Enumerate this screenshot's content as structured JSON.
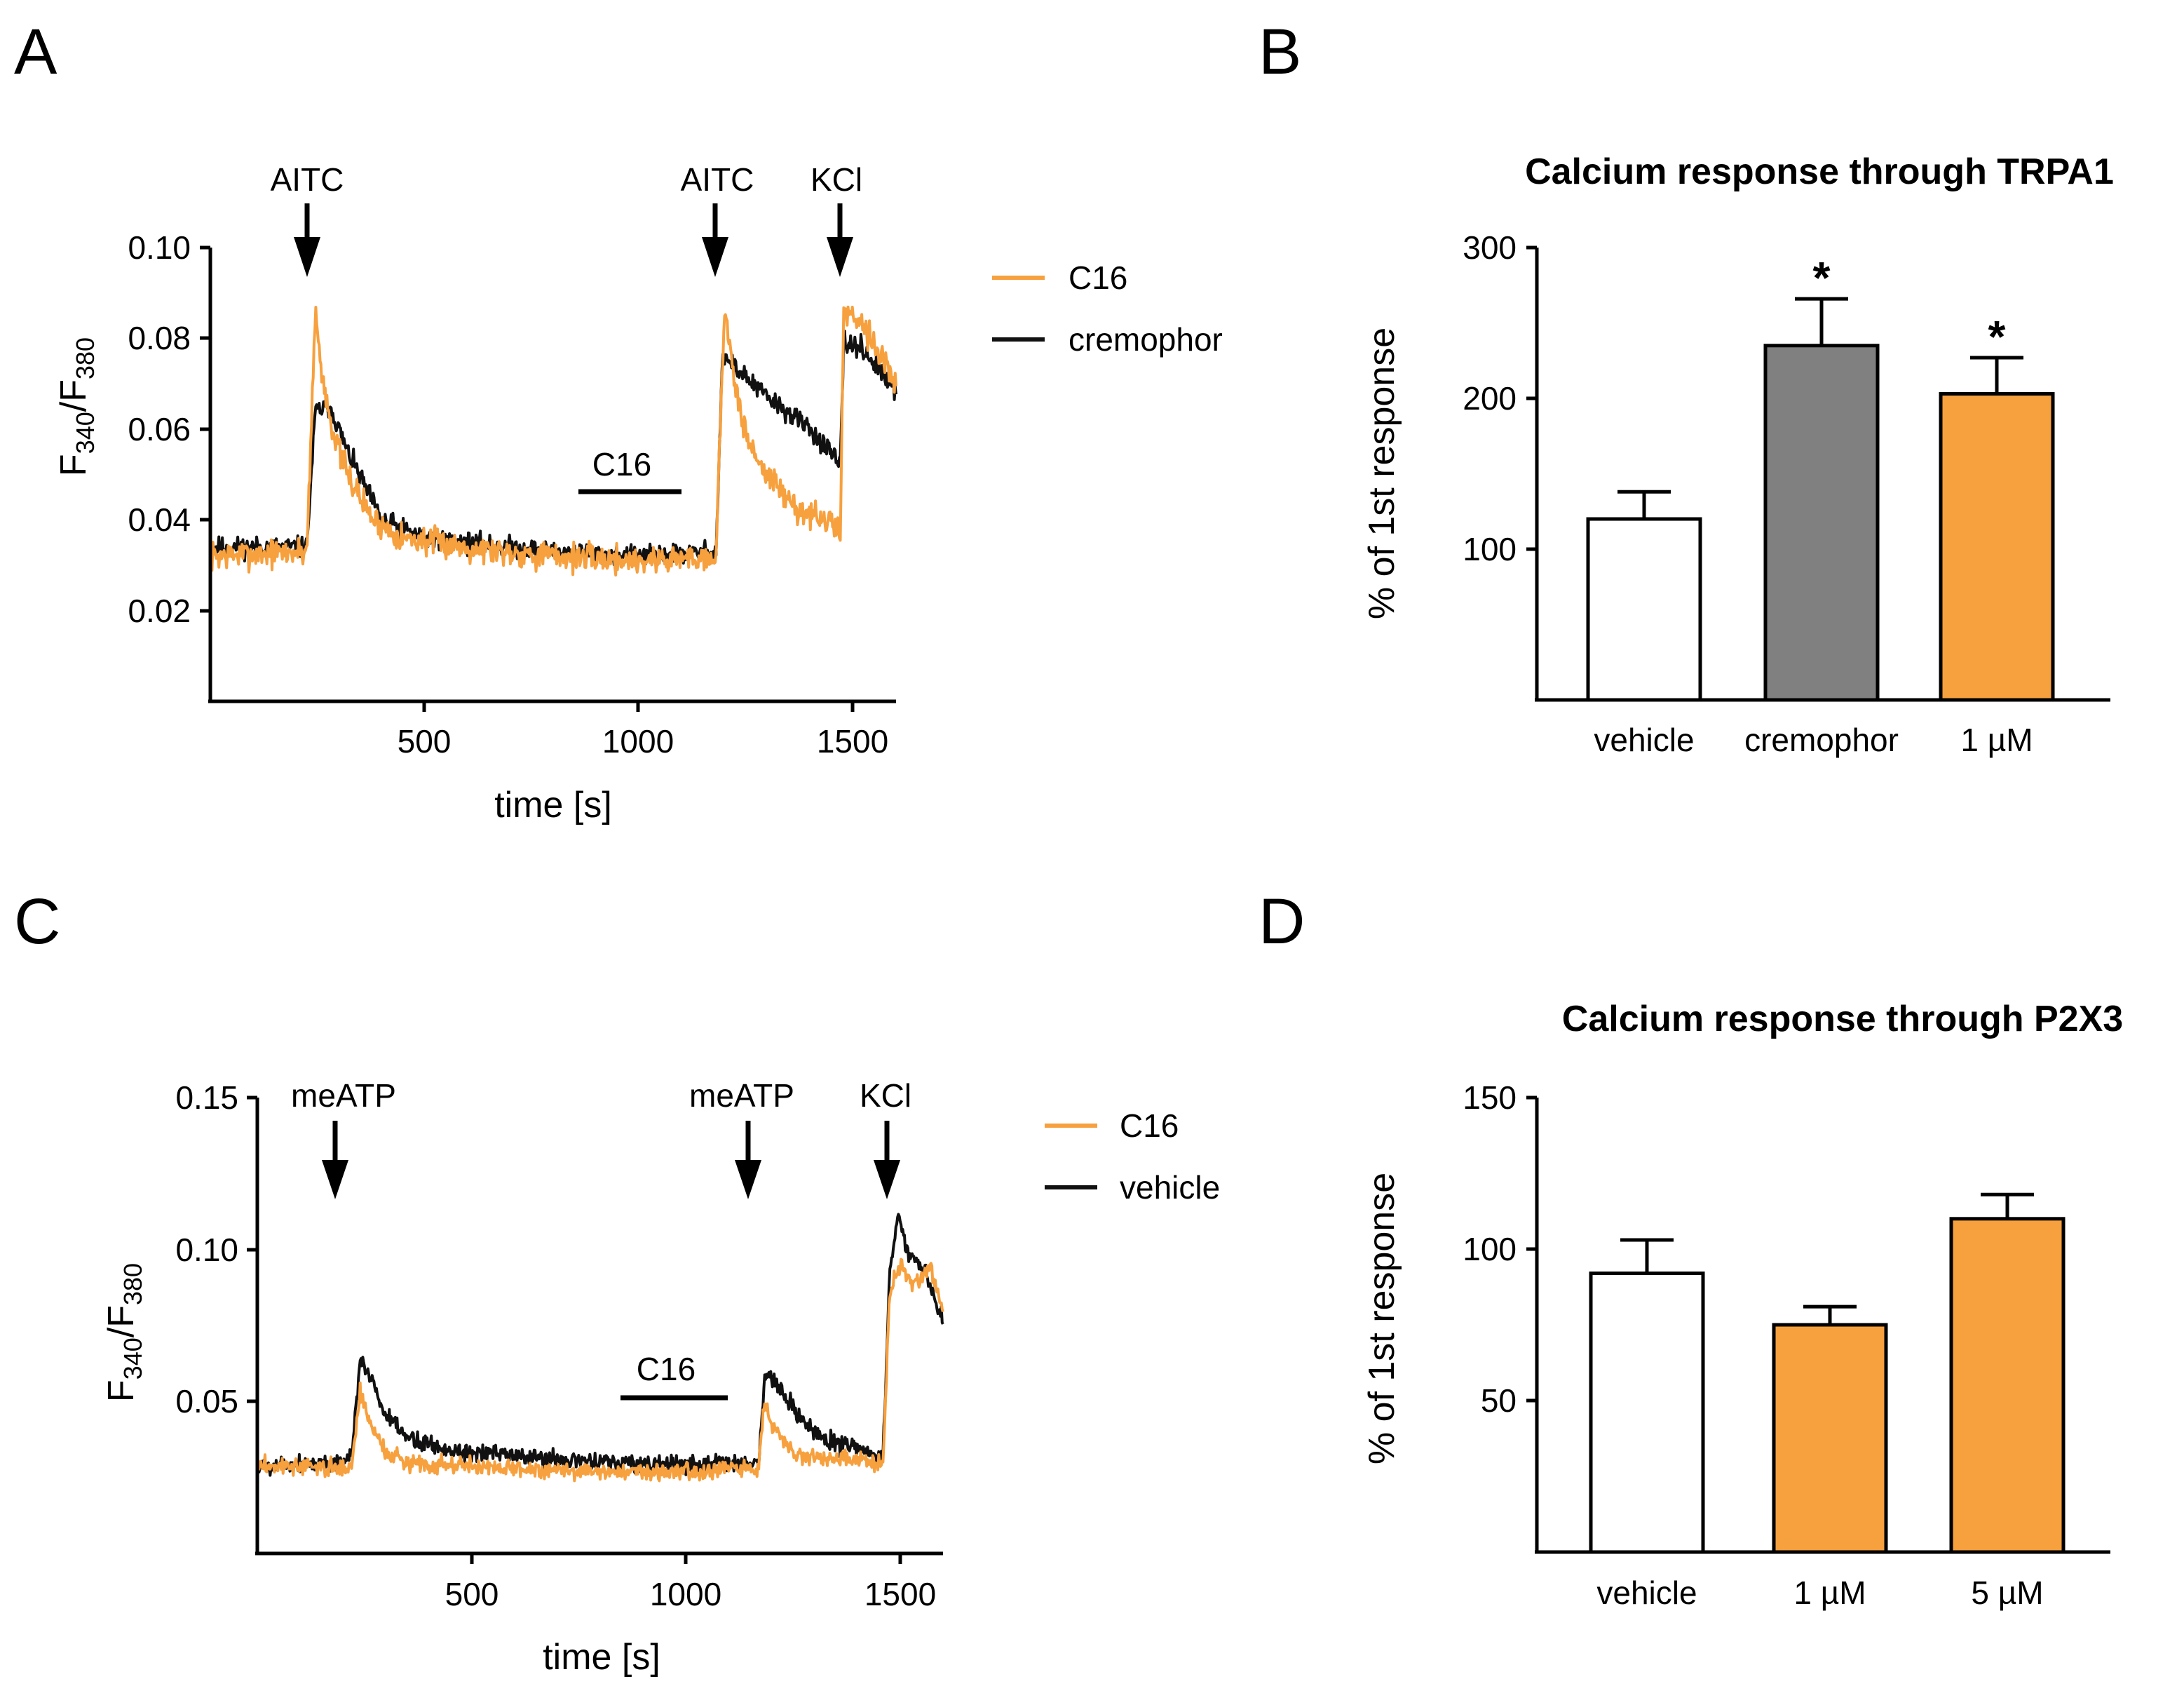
{
  "colors": {
    "orange": "#f7a03e",
    "grey": "#808080",
    "black": "#111111",
    "white": "#ffffff"
  },
  "chart_data": [
    {
      "panel": "A",
      "type": "line",
      "title": "",
      "xlabel": "time [s]",
      "ylabel": {
        "main1": "F",
        "sub1": "340",
        "slash": "/F",
        "sub2": "380"
      },
      "xlim": [
        0,
        1600
      ],
      "ylim": [
        0,
        0.1
      ],
      "xticks": [
        500,
        1000,
        1500
      ],
      "xtick_labels": [
        "500",
        "1000",
        "1500"
      ],
      "yticks": [
        0.02,
        0.04,
        0.06,
        0.08,
        0.1
      ],
      "ytick_labels": [
        "0.02",
        "0.04",
        "0.06",
        "0.08",
        "0.10"
      ],
      "legend": [
        {
          "name": "C16",
          "color": "#f7a03e"
        },
        {
          "name": "cremophor",
          "color": "#111111"
        }
      ],
      "annotations": [
        {
          "label": "AITC",
          "x": 225
        },
        {
          "label": "AITC",
          "x": 1180
        },
        {
          "label": "KCl",
          "x": 1470
        }
      ],
      "bar_annotation": {
        "label": "C16",
        "x_start": 860,
        "x_end": 1100,
        "y": 0.044
      },
      "series": [
        {
          "name": "cremophor",
          "color": "#111111",
          "noise": 0.0016,
          "seed": 11,
          "keypoints": [
            [
              0,
              0.034
            ],
            [
              225,
              0.034
            ],
            [
              245,
              0.064
            ],
            [
              280,
              0.065
            ],
            [
              320,
              0.055
            ],
            [
              400,
              0.04
            ],
            [
              500,
              0.036
            ],
            [
              600,
              0.035
            ],
            [
              800,
              0.033
            ],
            [
              1000,
              0.032
            ],
            [
              1180,
              0.033
            ],
            [
              1195,
              0.076
            ],
            [
              1220,
              0.074
            ],
            [
              1300,
              0.067
            ],
            [
              1400,
              0.06
            ],
            [
              1470,
              0.052
            ],
            [
              1478,
              0.079
            ],
            [
              1520,
              0.078
            ],
            [
              1600,
              0.068
            ]
          ]
        },
        {
          "name": "C16",
          "color": "#f7a03e",
          "noise": 0.0022,
          "seed": 7,
          "keypoints": [
            [
              0,
              0.032
            ],
            [
              225,
              0.033
            ],
            [
              245,
              0.086
            ],
            [
              260,
              0.072
            ],
            [
              290,
              0.058
            ],
            [
              320,
              0.05
            ],
            [
              380,
              0.04
            ],
            [
              450,
              0.036
            ],
            [
              600,
              0.034
            ],
            [
              800,
              0.032
            ],
            [
              1000,
              0.031
            ],
            [
              1180,
              0.032
            ],
            [
              1200,
              0.088
            ],
            [
              1225,
              0.068
            ],
            [
              1260,
              0.056
            ],
            [
              1300,
              0.05
            ],
            [
              1360,
              0.043
            ],
            [
              1470,
              0.038
            ],
            [
              1478,
              0.086
            ],
            [
              1520,
              0.084
            ],
            [
              1600,
              0.07
            ]
          ]
        }
      ]
    },
    {
      "panel": "B",
      "type": "bar",
      "title": "Calcium response through TRPA1",
      "xlabel": "",
      "ylabel": "% of 1st response",
      "ylim": [
        0,
        300
      ],
      "yticks": [
        100,
        200,
        300
      ],
      "ytick_labels": [
        "100",
        "200",
        "300"
      ],
      "categories": [
        "vehicle",
        "cremophor",
        "1 µM"
      ],
      "values": [
        120,
        235,
        203
      ],
      "errors": [
        18,
        31,
        24
      ],
      "fills": [
        "#ffffff",
        "#808080",
        "#f7a03e"
      ],
      "significance": [
        "",
        "*",
        "*"
      ]
    },
    {
      "panel": "C",
      "type": "line",
      "title": "",
      "xlabel": "time [s]",
      "ylabel": {
        "main1": "F",
        "sub1": "340",
        "slash": "/F",
        "sub2": "380"
      },
      "xlim": [
        0,
        1600
      ],
      "ylim": [
        0,
        0.15
      ],
      "xticks": [
        500,
        1000,
        1500
      ],
      "xtick_labels": [
        "500",
        "1000",
        "1500"
      ],
      "yticks": [
        0.05,
        0.1,
        0.15
      ],
      "ytick_labels": [
        "0.05",
        "0.10",
        "0.15"
      ],
      "legend": [
        {
          "name": "C16",
          "color": "#f7a03e"
        },
        {
          "name": "vehicle",
          "color": "#111111"
        }
      ],
      "annotations": [
        {
          "label": "meATP",
          "x": 180
        },
        {
          "label": "meATP",
          "x": 1145
        },
        {
          "label": "KCl",
          "x": 1470
        }
      ],
      "bar_annotation": {
        "label": "C16",
        "x_start": 860,
        "x_end": 1100,
        "y": 0.047
      },
      "series": [
        {
          "name": "vehicle",
          "color": "#111111",
          "noise": 0.0022,
          "seed": 5,
          "keypoints": [
            [
              0,
              0.029
            ],
            [
              200,
              0.03
            ],
            [
              220,
              0.031
            ],
            [
              240,
              0.064
            ],
            [
              265,
              0.058
            ],
            [
              300,
              0.045
            ],
            [
              350,
              0.038
            ],
            [
              450,
              0.034
            ],
            [
              600,
              0.032
            ],
            [
              800,
              0.03
            ],
            [
              1000,
              0.029
            ],
            [
              1170,
              0.03
            ],
            [
              1185,
              0.06
            ],
            [
              1210,
              0.056
            ],
            [
              1260,
              0.045
            ],
            [
              1330,
              0.037
            ],
            [
              1400,
              0.035
            ],
            [
              1460,
              0.032
            ],
            [
              1475,
              0.09
            ],
            [
              1495,
              0.112
            ],
            [
              1520,
              0.098
            ],
            [
              1560,
              0.092
            ],
            [
              1600,
              0.076
            ]
          ]
        },
        {
          "name": "C16",
          "color": "#f7a03e",
          "noise": 0.002,
          "seed": 3,
          "keypoints": [
            [
              0,
              0.029
            ],
            [
              200,
              0.028
            ],
            [
              220,
              0.029
            ],
            [
              240,
              0.053
            ],
            [
              260,
              0.044
            ],
            [
              300,
              0.033
            ],
            [
              350,
              0.03
            ],
            [
              600,
              0.028
            ],
            [
              800,
              0.027
            ],
            [
              1000,
              0.027
            ],
            [
              1170,
              0.028
            ],
            [
              1183,
              0.05
            ],
            [
              1205,
              0.042
            ],
            [
              1250,
              0.033
            ],
            [
              1330,
              0.031
            ],
            [
              1460,
              0.03
            ],
            [
              1475,
              0.085
            ],
            [
              1500,
              0.096
            ],
            [
              1530,
              0.088
            ],
            [
              1570,
              0.094
            ],
            [
              1600,
              0.08
            ]
          ]
        }
      ]
    },
    {
      "panel": "D",
      "type": "bar",
      "title": "Calcium response through P2X3",
      "xlabel": "",
      "ylabel": "% of 1st response",
      "ylim": [
        0,
        150
      ],
      "yticks": [
        50,
        100,
        150
      ],
      "ytick_labels": [
        "50",
        "100",
        "150"
      ],
      "categories": [
        "vehicle",
        "1 µM",
        "5 µM"
      ],
      "values": [
        92,
        75,
        110
      ],
      "errors": [
        11,
        6,
        8
      ],
      "fills": [
        "#ffffff",
        "#f7a03e",
        "#f7a03e"
      ],
      "significance": [
        "",
        "",
        ""
      ]
    }
  ],
  "panels": {
    "a": "A",
    "b": "B",
    "c": "C",
    "d": "D"
  },
  "panelA": {
    "title": "",
    "ylabel_main1": "F",
    "ylabel_sub1": "340",
    "ylabel_slash": "/F",
    "ylabel_sub2": "380",
    "xlabel": "time [s]",
    "xticks": [
      "500",
      "1000",
      "1500"
    ],
    "yticks": [
      "0.02",
      "0.04",
      "0.06",
      "0.08",
      "0.10"
    ],
    "ann": [
      "AITC",
      "AITC",
      "KCl"
    ],
    "bar_label": "C16",
    "legend": [
      "C16",
      "cremophor"
    ]
  },
  "panelB": {
    "title": "Calcium response through TRPA1",
    "ylabel": "% of 1st response",
    "yticks": [
      "100",
      "200",
      "300"
    ],
    "categories": [
      "vehicle",
      "cremophor",
      "1 µM"
    ],
    "sig": [
      "*",
      "*"
    ]
  },
  "panelC": {
    "ylabel_main1": "F",
    "ylabel_sub1": "340",
    "ylabel_slash": "/F",
    "ylabel_sub2": "380",
    "xlabel": "time [s]",
    "xticks": [
      "500",
      "1000",
      "1500"
    ],
    "yticks": [
      "0.05",
      "0.10",
      "0.15"
    ],
    "ann": [
      "meATP",
      "meATP",
      "KCl"
    ],
    "bar_label": "C16",
    "legend": [
      "C16",
      "vehicle"
    ]
  },
  "panelD": {
    "title": "Calcium response through P2X3",
    "ylabel": "% of 1st response",
    "yticks": [
      "50",
      "100",
      "150"
    ],
    "categories": [
      "vehicle",
      "1 µM",
      "5 µM"
    ]
  }
}
